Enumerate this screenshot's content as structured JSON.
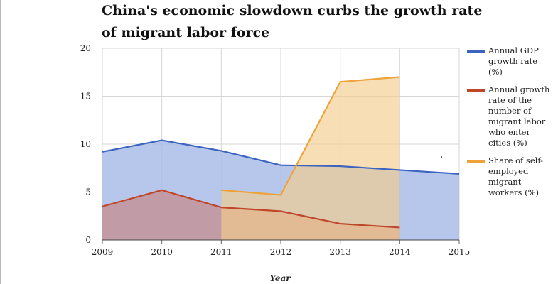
{
  "chart_data": {
    "type": "area",
    "title": "China's economic slowdown curbs the growth rate of migrant labor force",
    "xlabel": "Year",
    "ylabel": "",
    "x": [
      2009,
      2010,
      2011,
      2012,
      2013,
      2014,
      2015
    ],
    "ylim": [
      0,
      20
    ],
    "yticks": [
      0,
      5,
      10,
      15,
      20
    ],
    "grid": true,
    "legend_position": "right",
    "series": [
      {
        "name": "Annual GDP growth rate (%)",
        "color": "#3b64c0",
        "fill": "#a9bde8",
        "x": [
          2009,
          2010,
          2011,
          2012,
          2013,
          2014,
          2015
        ],
        "values": [
          9.2,
          10.4,
          9.3,
          7.8,
          7.7,
          7.3,
          6.9
        ]
      },
      {
        "name": "Annual growth rate of the number of migrant labor who enter cities (%)",
        "color": "#c0462a",
        "fill": "#c68a8a",
        "x": [
          2009,
          2010,
          2011,
          2012,
          2013,
          2014
        ],
        "values": [
          3.5,
          5.2,
          3.4,
          3.0,
          1.7,
          1.3
        ]
      },
      {
        "name": "Share of self-employed migrant workers (%)",
        "color": "#f0a23a",
        "fill": "#f5cc8c",
        "x": [
          2011,
          2012,
          2013,
          2014
        ],
        "values": [
          5.2,
          4.7,
          16.5,
          17.0
        ]
      }
    ]
  }
}
